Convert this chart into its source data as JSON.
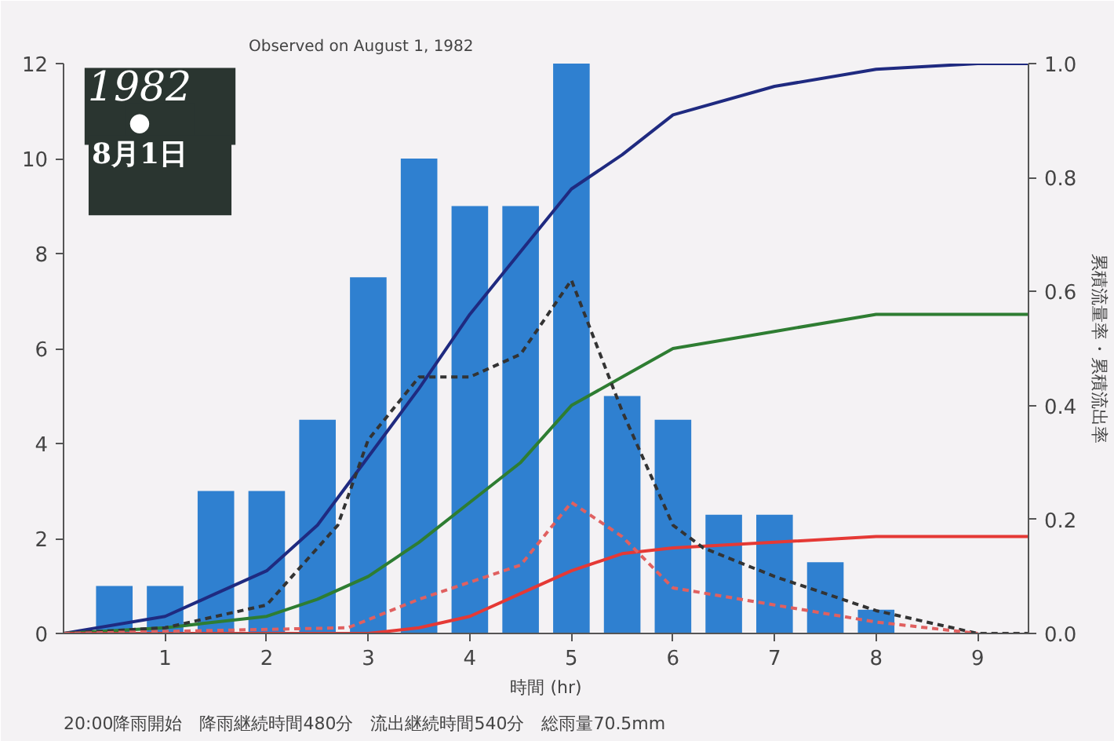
{
  "chart_data": {
    "type": "bar",
    "title": "Observed on August 1, 1982",
    "xlabel": "時間 (hr)",
    "y2label": "累積流量率・累積流出率",
    "annotations": [
      "1982",
      "●",
      "8月1日",
      "20:00降雨開始　降雨継続時間480分　流出継続時間540分　総雨量70.5mm"
    ],
    "xlim": [
      0,
      9.5
    ],
    "xticks": [
      1,
      2,
      3,
      4,
      5,
      6,
      7,
      8,
      9
    ],
    "ylim": [
      0,
      12
    ],
    "yticks": [
      0,
      2,
      4,
      6,
      8,
      10,
      12
    ],
    "y2lim": [
      0,
      1.0
    ],
    "y2ticks": [
      {
        "value": 0,
        "label": "0.0"
      },
      0.2,
      0.4,
      0.6,
      0.8,
      {
        "value": 1,
        "label": "1.0"
      }
    ],
    "grid": false,
    "series": [
      {
        "color": "#2f80d0",
        "x": [
          0.5,
          1,
          1.5,
          2,
          2.5,
          3,
          3.5,
          4,
          4.5,
          5,
          5.5,
          6,
          6.5,
          7,
          7.5,
          8
        ],
        "values": [
          1,
          1,
          3,
          3,
          4.5,
          7.5,
          10,
          9,
          9,
          12,
          5,
          4.5,
          2.5,
          2.5,
          1.5,
          0.5
        ]
      },
      {
        "type": "line",
        "axis": "y2",
        "color": "#1f2a80",
        "line_style": "solid",
        "x": [
          0,
          1,
          1.5,
          2,
          2.5,
          3,
          3.5,
          4,
          4.5,
          5,
          5.5,
          6,
          7,
          8,
          9,
          9.5
        ],
        "values": [
          0,
          0.03,
          0.07,
          0.11,
          0.19,
          0.31,
          0.43,
          0.56,
          0.67,
          0.78,
          0.84,
          0.91,
          0.96,
          0.99,
          1.0,
          1.0
        ]
      },
      {
        "type": "line",
        "axis": "y2",
        "color": "#2e7d32",
        "line_style": "solid",
        "x": [
          0,
          1,
          2,
          2.5,
          3,
          3.5,
          4,
          4.5,
          5,
          5.5,
          6,
          7,
          8,
          9.5
        ],
        "values": [
          0,
          0.01,
          0.03,
          0.06,
          0.1,
          0.16,
          0.23,
          0.3,
          0.4,
          0.45,
          0.5,
          0.53,
          0.56,
          0.56
        ]
      },
      {
        "type": "line",
        "axis": "y2",
        "color": "#e53935",
        "line_style": "solid",
        "x": [
          0,
          3,
          3.5,
          4,
          4.5,
          5,
          5.5,
          6,
          7,
          8,
          9.5
        ],
        "values": [
          0,
          0,
          0.01,
          0.03,
          0.07,
          0.11,
          0.14,
          0.15,
          0.16,
          0.17,
          0.17
        ]
      },
      {
        "type": "line",
        "axis": "y2",
        "color": "#333333",
        "line_style": "dashed",
        "x": [
          0,
          1,
          2,
          2.7,
          3,
          3.5,
          4,
          4.5,
          5,
          5.5,
          6,
          6.3,
          7,
          8,
          9,
          9.5
        ],
        "values": [
          0,
          0.01,
          0.05,
          0.19,
          0.34,
          0.45,
          0.45,
          0.49,
          0.62,
          0.39,
          0.19,
          0.15,
          0.1,
          0.04,
          0,
          0
        ]
      },
      {
        "type": "line",
        "axis": "y2",
        "color": "#e06060",
        "line_style": "dashed",
        "x": [
          0,
          2.8,
          3.5,
          4.5,
          5,
          5.5,
          6,
          7,
          8,
          9
        ],
        "values": [
          0,
          0.01,
          0.06,
          0.12,
          0.23,
          0.17,
          0.08,
          0.05,
          0.02,
          0
        ]
      }
    ]
  }
}
